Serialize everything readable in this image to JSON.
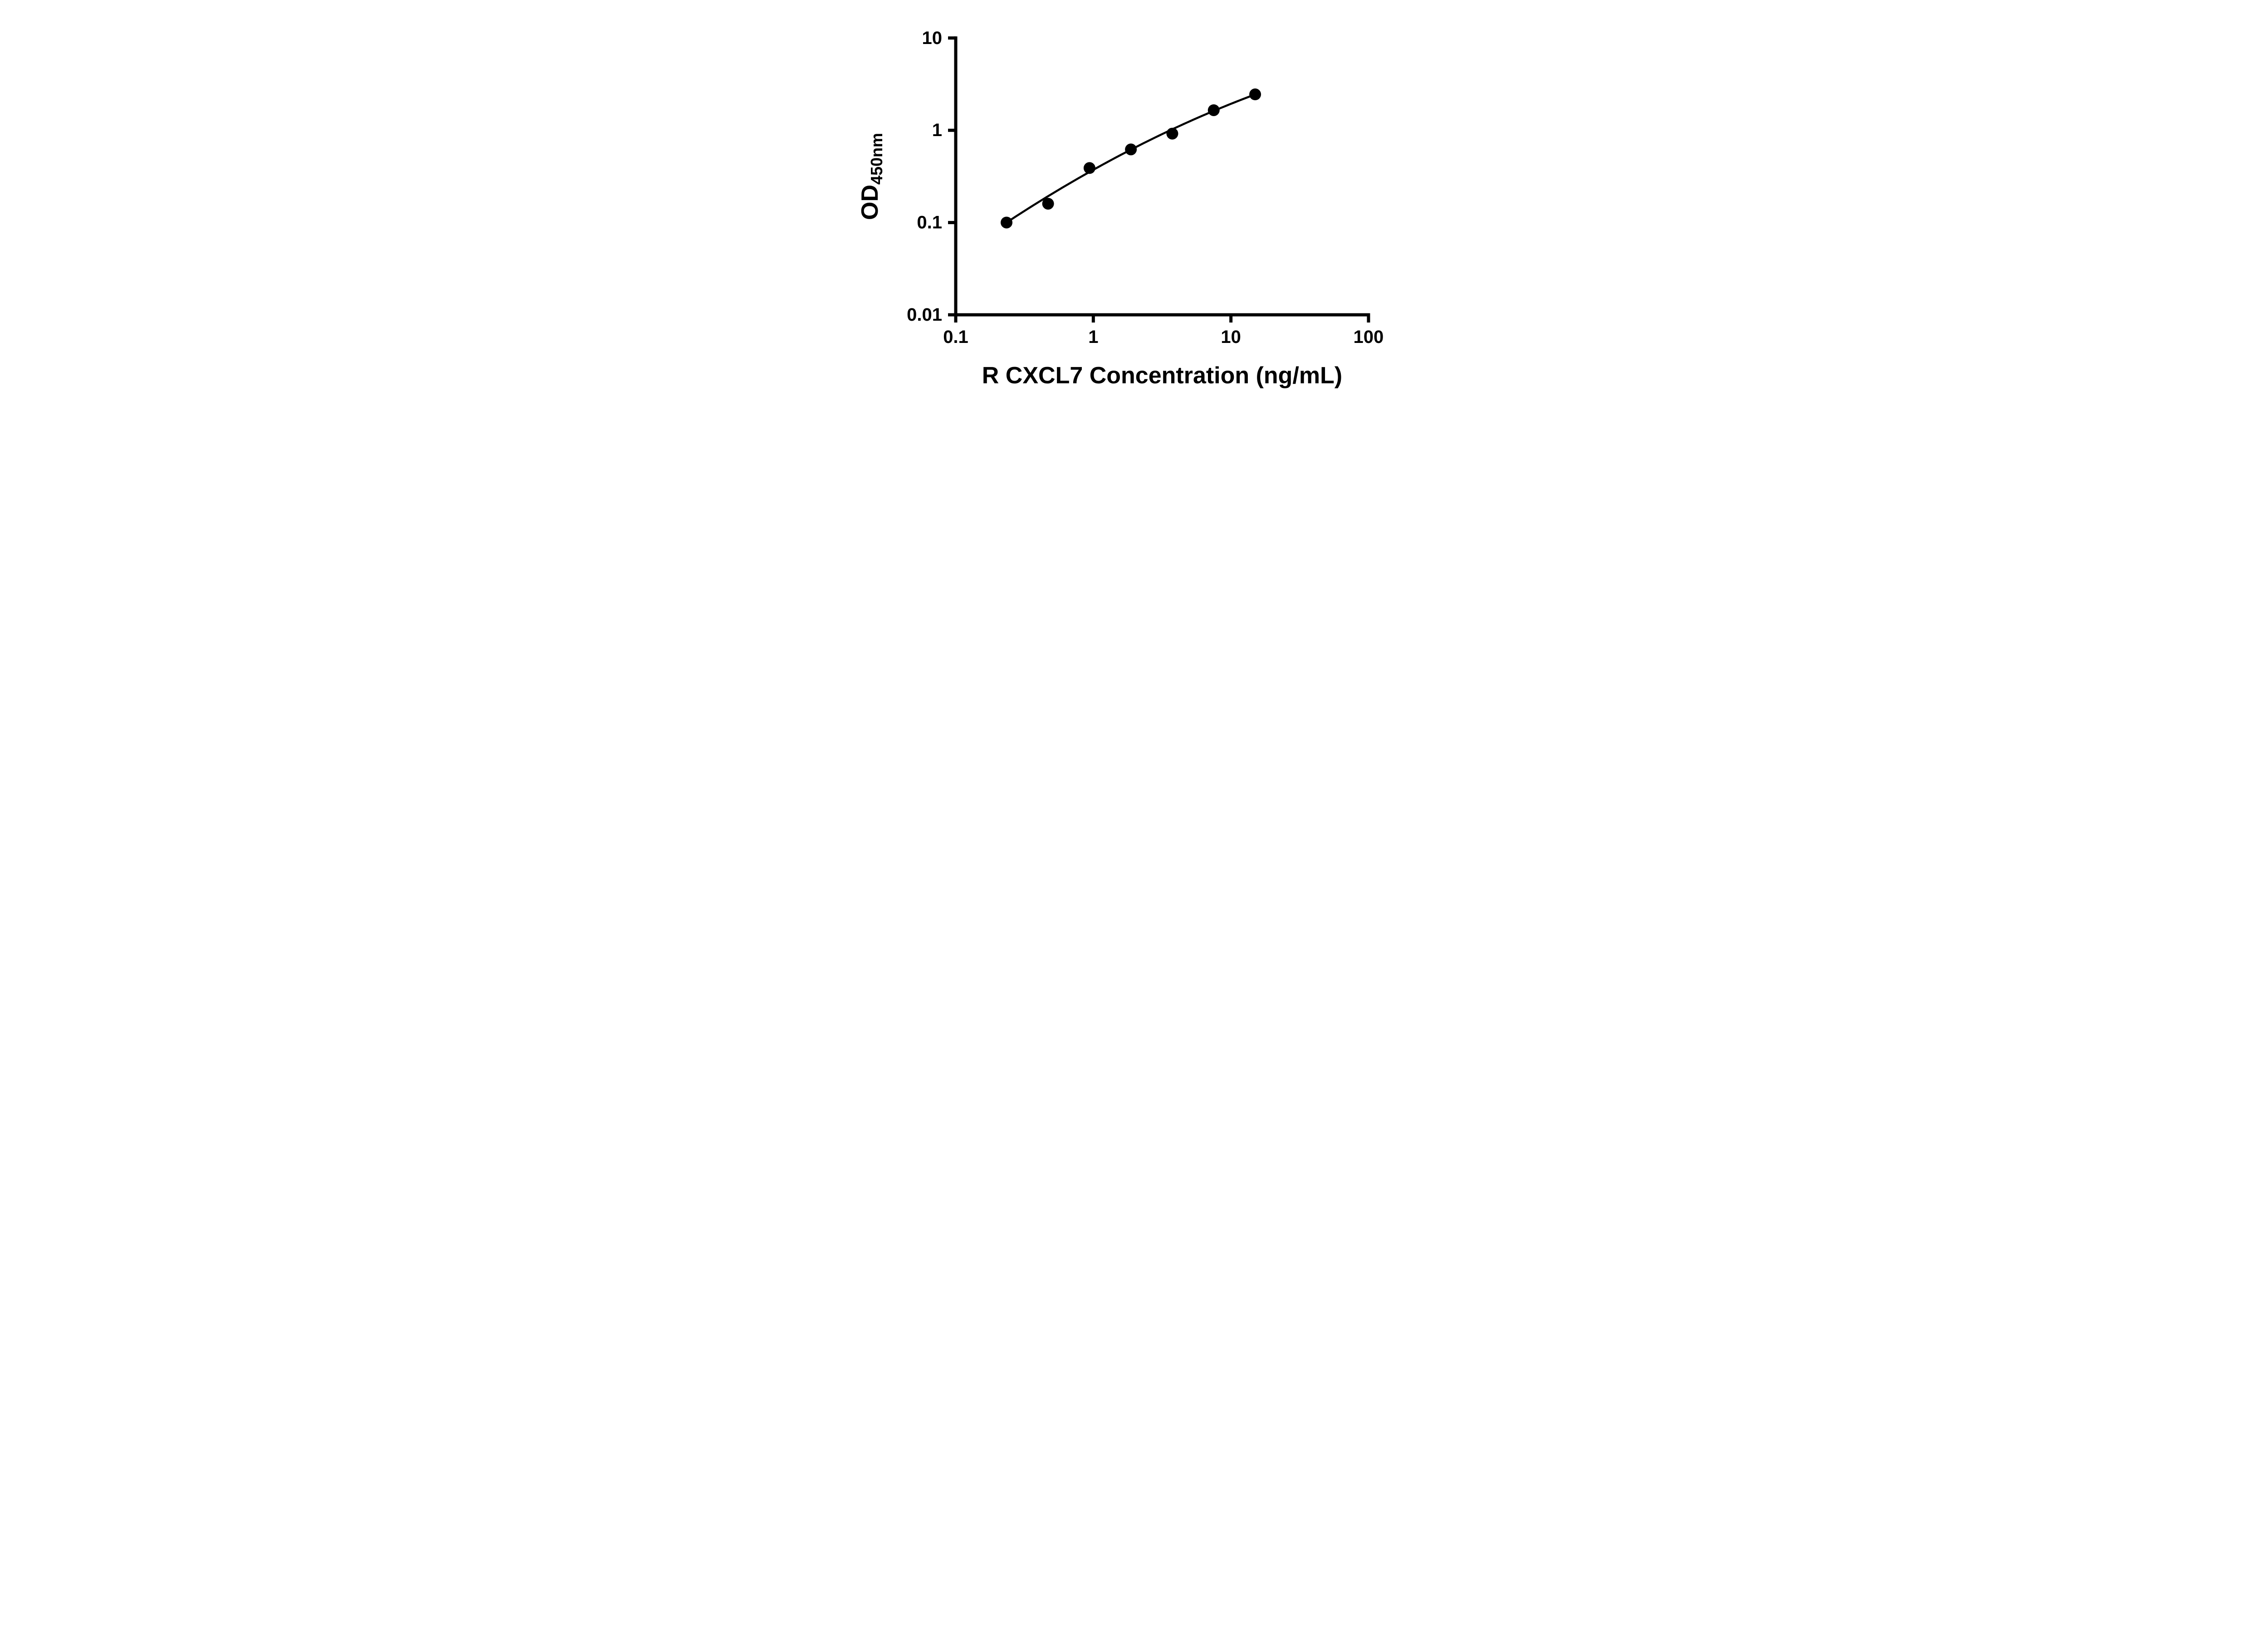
{
  "chart_data": {
    "type": "scatter",
    "title": "",
    "xlabel": "R CXCL7 Concentration (ng/mL)",
    "ylabel_main": "OD",
    "ylabel_sub": "450nm",
    "x_scale": "log",
    "y_scale": "log",
    "xlim": [
      0.1,
      100
    ],
    "ylim": [
      0.01,
      10
    ],
    "x_ticks": [
      0.1,
      1,
      10,
      100
    ],
    "x_tick_labels": [
      "0.1",
      "1",
      "10",
      "100"
    ],
    "y_ticks": [
      0.01,
      0.1,
      1,
      10
    ],
    "y_tick_labels": [
      "0.01",
      "0.1",
      "1",
      "10"
    ],
    "x": [
      0.234,
      0.469,
      0.938,
      1.875,
      3.75,
      7.5,
      15
    ],
    "y": [
      0.1,
      0.16,
      0.39,
      0.62,
      0.92,
      1.65,
      2.45
    ],
    "fit_curve": {
      "model": "quadratic_loglog",
      "a": -0.4284,
      "b": 0.832,
      "c": -0.117,
      "x_range": [
        0.234,
        15
      ]
    },
    "grid": false,
    "legend": null,
    "marker_color": "#000000",
    "line_color": "#000000",
    "axis_color": "#000000",
    "background_color": "#ffffff"
  }
}
